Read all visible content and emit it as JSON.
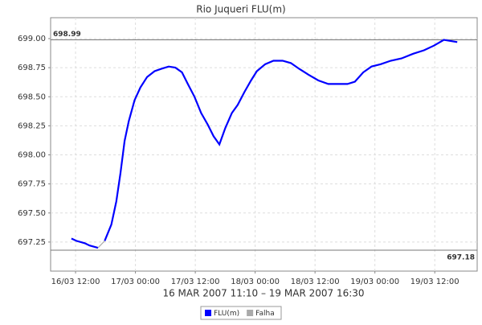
{
  "chart_data": {
    "type": "line",
    "title": "Rio Juqueri FLU(m)",
    "subtitle": "16 MAR 2007 11:10 – 19 MAR 2007 16:30",
    "x": [
      "16/03 11:10",
      "16/03 12:10",
      "16/03 13:50",
      "16/03 14:50",
      "16/03 16:30",
      "16/03 17:10",
      "16/03 17:50",
      "16/03 19:10",
      "16/03 20:10",
      "16/03 21:00",
      "16/03 21:50",
      "16/03 22:40",
      "16/03 23:50",
      "17/03 01:00",
      "17/03 02:20",
      "17/03 03:50",
      "17/03 05:10",
      "17/03 06:40",
      "17/03 08:00",
      "17/03 09:20",
      "17/03 10:30",
      "17/03 11:50",
      "17/03 13:10",
      "17/03 14:30",
      "17/03 15:40",
      "17/03 16:50",
      "17/03 18:00",
      "17/03 19:20",
      "17/03 20:30",
      "17/03 21:50",
      "17/03 23:10",
      "18/03 00:20",
      "18/03 02:00",
      "18/03 03:40",
      "18/03 05:30",
      "18/03 07:10",
      "18/03 08:50",
      "18/03 10:40",
      "18/03 12:40",
      "18/03 14:40",
      "18/03 16:30",
      "18/03 18:30",
      "18/03 20:00",
      "18/03 21:40",
      "18/03 23:20",
      "19/03 01:10",
      "19/03 03:10",
      "19/03 05:20",
      "19/03 07:40",
      "19/03 09:50",
      "19/03 11:50",
      "19/03 13:50",
      "19/03 16:30"
    ],
    "series": [
      {
        "name": "FLU(m)",
        "color": "#0000ff",
        "values": [
          697.28,
          697.26,
          697.24,
          697.22,
          697.2,
          null,
          697.26,
          697.4,
          697.6,
          697.84,
          698.12,
          698.29,
          698.47,
          698.58,
          698.67,
          698.72,
          698.74,
          698.76,
          698.75,
          698.71,
          698.61,
          698.5,
          698.36,
          698.26,
          698.16,
          698.09,
          698.23,
          698.36,
          698.43,
          698.54,
          698.64,
          698.72,
          698.78,
          698.81,
          698.81,
          698.79,
          698.74,
          698.69,
          698.64,
          698.61,
          698.61,
          698.61,
          698.63,
          698.71,
          698.76,
          698.78,
          698.81,
          698.83,
          698.87,
          698.9,
          698.94,
          698.99,
          698.97
        ]
      },
      {
        "name": "Falha",
        "color": "#aaaaaa",
        "values": [
          null,
          null,
          null,
          null,
          697.2,
          697.23,
          697.26,
          null,
          null,
          null,
          null,
          null,
          null,
          null,
          null,
          null,
          null,
          null,
          null,
          null,
          null,
          null,
          null,
          null,
          null,
          null,
          null,
          null,
          null,
          null,
          null,
          null,
          null,
          null,
          null,
          null,
          null,
          null,
          null,
          null,
          null,
          null,
          null,
          null,
          null,
          null,
          null,
          null,
          null,
          null,
          null,
          null,
          null
        ]
      }
    ],
    "markers": [
      698.99,
      697.18
    ],
    "xlim": [
      "16/03 07:00",
      "19/03 20:30"
    ],
    "xticks": [
      "16/03 12:00",
      "17/03 00:00",
      "17/03 12:00",
      "18/03 00:00",
      "18/03 12:00",
      "19/03 00:00",
      "19/03 12:00"
    ],
    "ylim": [
      697.0,
      699.18
    ],
    "yticks": [
      697.25,
      {
        "value": 697.5,
        "label": "697.50"
      },
      697.75,
      {
        "value": 698.0,
        "label": "698.00"
      },
      698.25,
      {
        "value": 698.5,
        "label": "698.50"
      },
      698.75,
      {
        "value": 699.0,
        "label": "699.00"
      }
    ],
    "grid": true,
    "legend": "bottom"
  }
}
